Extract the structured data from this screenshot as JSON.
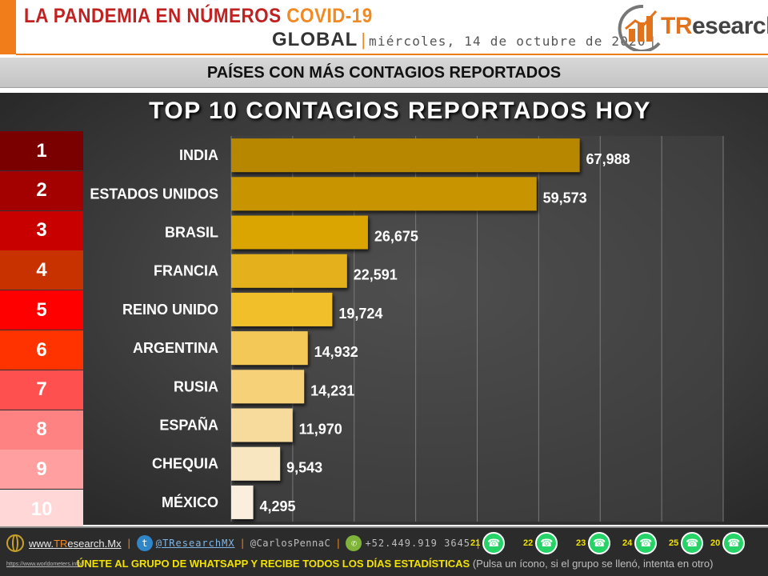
{
  "header": {
    "title_part1": "LA PANDEMIA EN NÚMEROS",
    "title_part2": "COVID-19",
    "region": "GLOBAL",
    "date": "miércoles, 14 de octubre de 2020",
    "logo_text_a": "TR",
    "logo_text_b": "esearch"
  },
  "band": {
    "text": "PAÍSES CON MÁS CONTAGIOS REPORTADOS"
  },
  "ranks": [
    "1",
    "2",
    "3",
    "4",
    "5",
    "6",
    "7",
    "8",
    "9",
    "10"
  ],
  "rank_colors": [
    "#7a0000",
    "#a30000",
    "#c80000",
    "#c83200",
    "#ff0000",
    "#ff3300",
    "#ff5050",
    "#ff8282",
    "#ff9f9f",
    "#ffd7d7"
  ],
  "chart_data": {
    "type": "bar",
    "orientation": "horizontal",
    "title": "TOP 10 CONTAGIOS REPORTADOS HOY",
    "categories": [
      "INDIA",
      "ESTADOS UNIDOS",
      "BRASIL",
      "FRANCIA",
      "REINO UNIDO",
      "ARGENTINA",
      "RUSIA",
      "ESPAÑA",
      "CHEQUIA",
      "MÉXICO"
    ],
    "values": [
      67988,
      59573,
      26675,
      22591,
      19724,
      14932,
      14231,
      11970,
      9543,
      4295
    ],
    "value_labels": [
      "67,988",
      "59,573",
      "26,675",
      "22,591",
      "19,724",
      "14,932",
      "14,231",
      "11,970",
      "9,543",
      "4,295"
    ],
    "xlim": [
      0,
      96000
    ],
    "grid": true,
    "bar_colors": [
      "#b88700",
      "#c89500",
      "#daa500",
      "#e4b11c",
      "#f0bf2c",
      "#f4c856",
      "#f6d178",
      "#f7db9c",
      "#f8e6c0",
      "#faefde"
    ]
  },
  "footer": {
    "site_prefix": "www.",
    "site_highlight": "TR",
    "site_suffix": "esearch.Mx",
    "twitter": "@TResearchMX",
    "handle": "@CarlosPennaC",
    "phone": "+52.449.919 3645",
    "whatsapp_groups": [
      "21",
      "22",
      "23",
      "24",
      "25",
      "20"
    ],
    "url_small": "https://www.worldometers.info/",
    "invite_main": "ÚNETE AL GRUPO DE WHATSAPP Y RECIBE TODOS LOS DÍAS ESTADÍSTICAS",
    "invite_note": "(Pulsa un ícono, si el grupo se llenó, intenta en otro)"
  }
}
